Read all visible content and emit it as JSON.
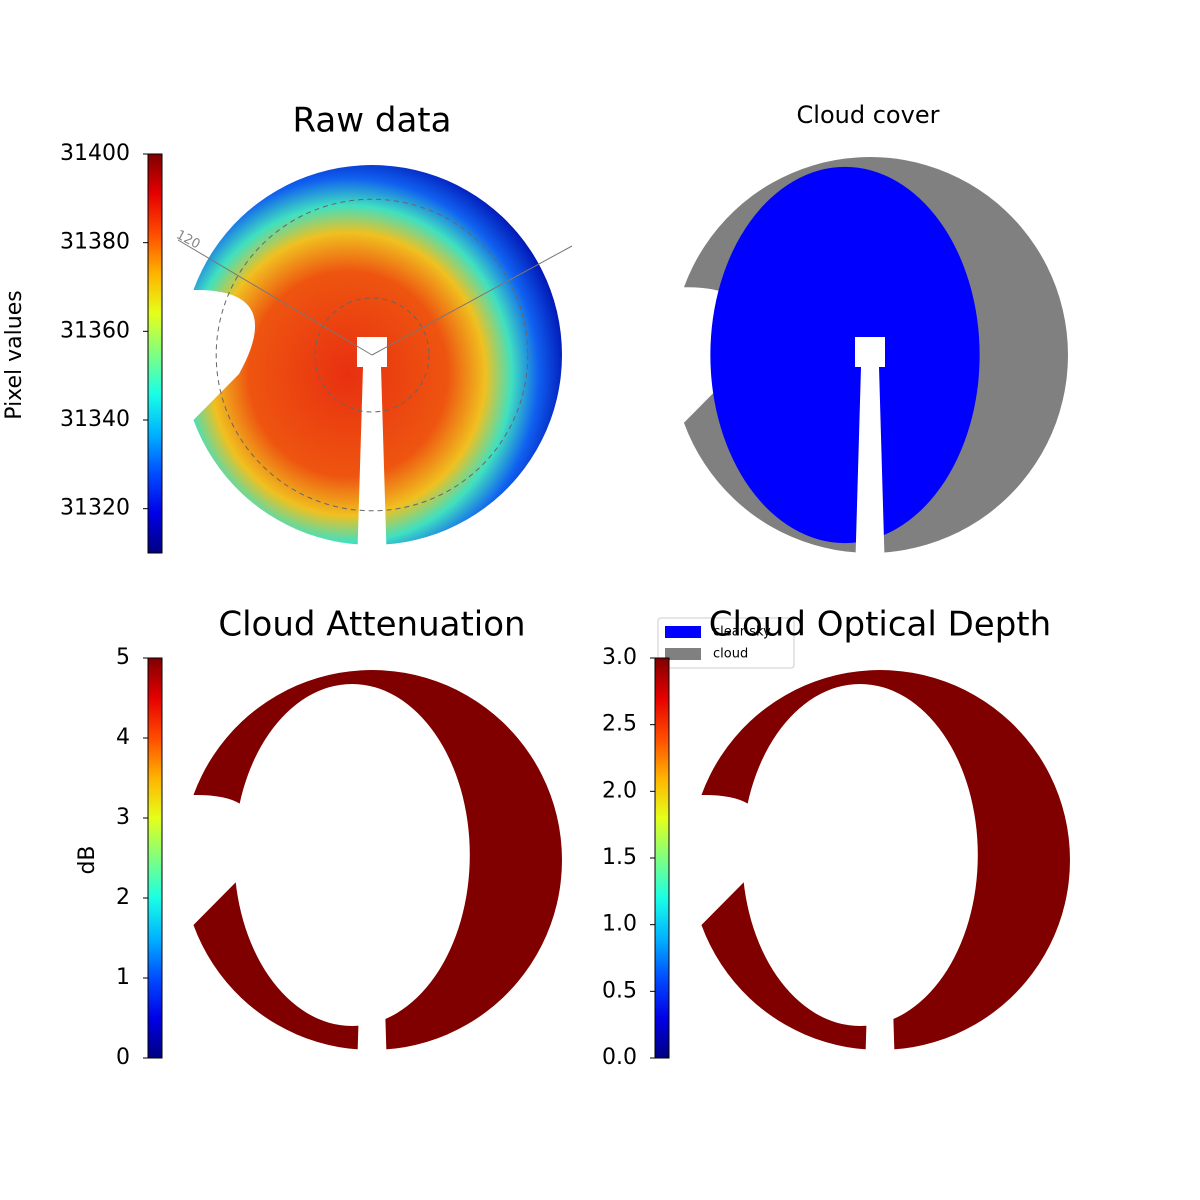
{
  "chart_data": [
    {
      "type": "image",
      "title": "Raw data",
      "colormap": "jet",
      "ylabel": "Pixel values",
      "ylim": [
        31310,
        31400
      ],
      "yticks": [
        31320,
        31340,
        31360,
        31380,
        31400
      ],
      "annotation": "120"
    },
    {
      "type": "image",
      "title": "Cloud cover",
      "legend": [
        {
          "name": "clear sky",
          "color": "#0000ff"
        },
        {
          "name": "cloud",
          "color": "#808080"
        }
      ]
    },
    {
      "type": "image",
      "title": "Cloud Attenuation",
      "colormap": "jet",
      "ylabel": "dB",
      "ylim": [
        0,
        5
      ],
      "yticks": [
        0,
        1,
        2,
        3,
        4,
        5
      ]
    },
    {
      "type": "image",
      "title": "Cloud Optical Depth",
      "colormap": "jet",
      "ylim": [
        0,
        3
      ],
      "yticks": [
        {
          "value": 0,
          "label": "0.0"
        },
        0.5,
        {
          "value": 1,
          "label": "1.0"
        },
        1.5,
        {
          "value": 2,
          "label": "2.0"
        },
        2.5,
        {
          "value": 3,
          "label": "3.0"
        }
      ]
    }
  ]
}
